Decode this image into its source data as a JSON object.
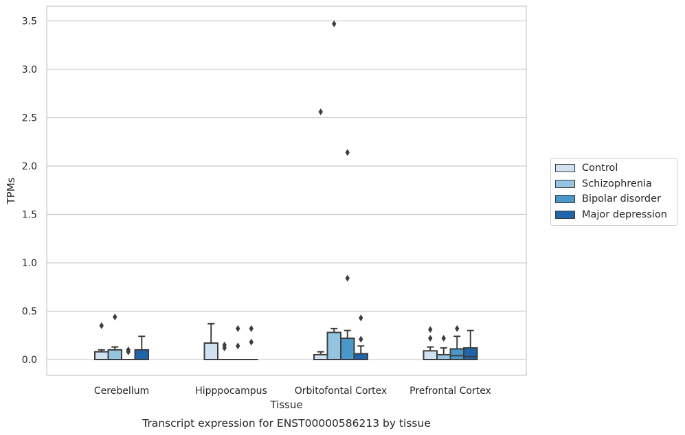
{
  "chart_data": {
    "type": "box",
    "title": "Transcript expression for ENST00000586213 by tissue",
    "xlabel": "Tissue",
    "ylabel": "TPMs",
    "ylim": [
      -0.17,
      3.65
    ],
    "yticks": [
      "0.0",
      "0.5",
      "1.0",
      "1.5",
      "2.0",
      "2.5",
      "3.0",
      "3.5"
    ],
    "ytick_values": [
      0,
      0.5,
      1.0,
      1.5,
      2.0,
      2.5,
      3.0,
      3.5
    ],
    "grid": "horizontal",
    "legend_position": "right",
    "categories": [
      "Cerebellum",
      "Hipppocampus",
      "Orbitofontal Cortex",
      "Prefrontal Cortex"
    ],
    "series": [
      {
        "name": "Control",
        "color": "#d0e1f2",
        "boxes": [
          {
            "q1": 0,
            "median": 0,
            "q3": 0.08,
            "whisker_low": 0,
            "whisker_high": 0.1,
            "outliers": [
              0.35
            ]
          },
          {
            "q1": 0,
            "median": 0,
            "q3": 0.17,
            "whisker_low": 0,
            "whisker_high": 0.37,
            "outliers": []
          },
          {
            "q1": 0,
            "median": 0,
            "q3": 0.05,
            "whisker_low": 0,
            "whisker_high": 0.08,
            "outliers": [
              2.56
            ]
          },
          {
            "q1": 0,
            "median": 0,
            "q3": 0.09,
            "whisker_low": 0,
            "whisker_high": 0.13,
            "outliers": [
              0.31,
              0.22
            ]
          }
        ]
      },
      {
        "name": "Schizophrenia",
        "color": "#94c4df",
        "boxes": [
          {
            "q1": 0,
            "median": 0,
            "q3": 0.1,
            "whisker_low": 0,
            "whisker_high": 0.13,
            "outliers": [
              0.44
            ]
          },
          {
            "q1": 0,
            "median": 0,
            "q3": 0,
            "whisker_low": 0,
            "whisker_high": 0,
            "outliers": [
              0.15,
              0.12
            ]
          },
          {
            "q1": 0,
            "median": 0,
            "q3": 0.28,
            "whisker_low": 0,
            "whisker_high": 0.32,
            "outliers": [
              3.47
            ]
          },
          {
            "q1": 0,
            "median": 0,
            "q3": 0.05,
            "whisker_low": 0,
            "whisker_high": 0.12,
            "outliers": [
              0.22
            ]
          }
        ]
      },
      {
        "name": "Bipolar disorder",
        "color": "#4a98c9",
        "boxes": [
          {
            "q1": 0,
            "median": 0,
            "q3": 0,
            "whisker_low": 0,
            "whisker_high": 0,
            "outliers": [
              0.1,
              0.08
            ]
          },
          {
            "q1": 0,
            "median": 0,
            "q3": 0,
            "whisker_low": 0,
            "whisker_high": 0,
            "outliers": [
              0.32,
              0.14
            ]
          },
          {
            "q1": 0,
            "median": 0,
            "q3": 0.22,
            "whisker_low": 0,
            "whisker_high": 0.3,
            "outliers": [
              2.14,
              0.84
            ]
          },
          {
            "q1": 0,
            "median": 0.04,
            "q3": 0.11,
            "whisker_low": 0,
            "whisker_high": 0.24,
            "outliers": [
              0.32
            ]
          }
        ]
      },
      {
        "name": "Major depression",
        "color": "#2064ac",
        "boxes": [
          {
            "q1": 0,
            "median": 0,
            "q3": 0.1,
            "whisker_low": 0,
            "whisker_high": 0.24,
            "outliers": []
          },
          {
            "q1": 0,
            "median": 0,
            "q3": 0,
            "whisker_low": 0,
            "whisker_high": 0,
            "outliers": [
              0.32,
              0.18
            ]
          },
          {
            "q1": 0,
            "median": 0,
            "q3": 0.06,
            "whisker_low": 0,
            "whisker_high": 0.14,
            "outliers": [
              0.43,
              0.21
            ]
          },
          {
            "q1": 0,
            "median": 0.03,
            "q3": 0.12,
            "whisker_low": 0,
            "whisker_high": 0.3,
            "outliers": []
          }
        ]
      }
    ]
  }
}
